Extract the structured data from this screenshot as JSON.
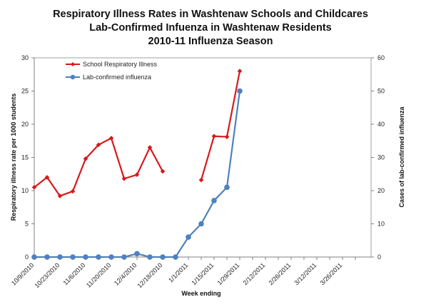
{
  "chart_data": {
    "type": "line",
    "title": [
      "Respiratory Illness Rates in Washtenaw Schools and Childcares",
      "Lab-Confirmed Infuenza in Washtenaw Residents",
      "2010-11 Influenza Season"
    ],
    "xlabel": "Week ending",
    "ylabel_left": "Respiratory illness rate per 1000 students",
    "ylabel_right": "Cases of lab-confirmed influenza",
    "ylim_left": [
      0,
      30
    ],
    "ylim_right": [
      0,
      60
    ],
    "yticks_left": [
      "0",
      "5",
      "10",
      "15",
      "20",
      "25",
      "30"
    ],
    "yticks_right": [
      "0",
      "10",
      "20",
      "30",
      "40",
      "50",
      "60"
    ],
    "x_tick_labels": [
      "10/9/2010",
      "10/23/2010",
      "11/6/2010",
      "11/20/2010",
      "12/4/2010",
      "12/18/2010",
      "1/1/2011",
      "1/15/2011",
      "1/29/2011",
      "2/12/2011",
      "2/26/2011",
      "3/12/2011",
      "3/26/2011"
    ],
    "grid": false,
    "legend_position": "top-left",
    "x": [
      "10/9/2010",
      "10/16/2010",
      "10/23/2010",
      "10/30/2010",
      "11/6/2010",
      "11/13/2010",
      "11/20/2010",
      "11/27/2010",
      "12/4/2010",
      "12/11/2010",
      "12/18/2010",
      "12/25/2010",
      "1/1/2011",
      "1/8/2011",
      "1/15/2011",
      "1/22/2011",
      "1/29/2011",
      "2/5/2011",
      "2/12/2011",
      "2/19/2011",
      "2/26/2011",
      "3/5/2011",
      "3/12/2011",
      "3/19/2011",
      "3/26/2011",
      "4/2/2011"
    ],
    "series": [
      {
        "name": "School Respiratory Illness",
        "axis": "left",
        "color": "#d7191c",
        "marker": "diamond",
        "values": [
          10.5,
          12.0,
          9.2,
          9.9,
          14.8,
          16.9,
          17.9,
          11.8,
          12.4,
          16.5,
          12.9,
          null,
          null,
          11.6,
          18.2,
          18.1,
          28.0,
          null,
          null,
          null,
          null,
          null,
          null,
          null,
          null,
          null
        ]
      },
      {
        "name": "Lab-confirmed influenza",
        "axis": "right",
        "color": "#4f81bd",
        "marker": "circle",
        "values": [
          0,
          0,
          0,
          0,
          0,
          0,
          0,
          0,
          1,
          0,
          0,
          0,
          6,
          10,
          17,
          21,
          50,
          null,
          null,
          null,
          null,
          null,
          null,
          null,
          null,
          null
        ]
      }
    ]
  }
}
